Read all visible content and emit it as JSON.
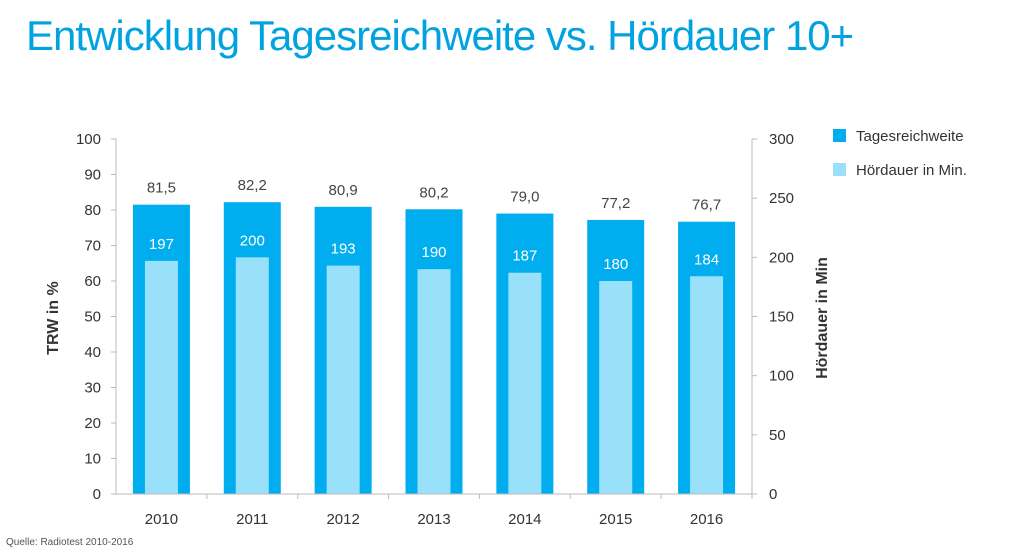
{
  "title": "Entwicklung Tagesreichweite vs. Hördauer 10+",
  "source": "Quelle: Radiotest 2010-2016",
  "chart_data": {
    "type": "bar",
    "categories": [
      "2010",
      "2011",
      "2012",
      "2013",
      "2014",
      "2015",
      "2016"
    ],
    "series": [
      {
        "name": "Tagesreichweite",
        "axis": "left",
        "color": "#00aeef",
        "values": [
          81.5,
          82.2,
          80.9,
          80.2,
          79.0,
          77.2,
          76.7
        ],
        "labels": [
          "81,5",
          "82,2",
          "80,9",
          "80,2",
          "79,0",
          "77,2",
          "76,7"
        ]
      },
      {
        "name": "Hördauer in Min.",
        "axis": "right",
        "color": "#99e1fb",
        "values": [
          197,
          200,
          193,
          190,
          187,
          180,
          184
        ],
        "labels": [
          "197",
          "200",
          "193",
          "190",
          "187",
          "180",
          "184"
        ]
      }
    ],
    "ylabel": "TRW in %",
    "ylim": [
      0,
      100
    ],
    "yticks": [
      "0",
      "10",
      "20",
      "30",
      "40",
      "50",
      "60",
      "70",
      "80",
      "90",
      "100"
    ],
    "y2label": "Hördauer in Min",
    "y2lim": [
      0,
      300
    ],
    "y2ticks": [
      "0",
      "50",
      "100",
      "150",
      "200",
      "250",
      "300"
    ],
    "grid": false,
    "legend": "top-right"
  }
}
